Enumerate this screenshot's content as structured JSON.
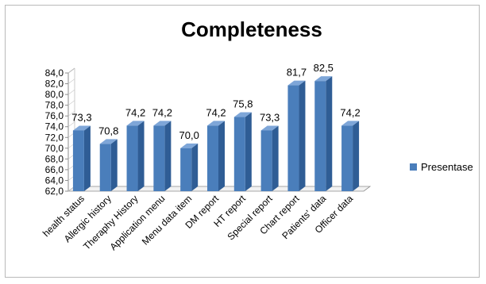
{
  "chart_data": {
    "type": "bar",
    "title": "Completeness",
    "categories": [
      "health status",
      "Allergic history",
      "Theraphy History",
      "Application menu",
      "Menu data item",
      "DM report",
      "HT report",
      "Special report",
      "Chart report",
      "Patients' data",
      "Officer data"
    ],
    "series": [
      {
        "name": "Presentase",
        "values": [
          73.3,
          70.8,
          74.2,
          74.2,
          70.0,
          74.2,
          75.8,
          73.3,
          81.7,
          82.5,
          74.2
        ]
      }
    ],
    "data_labels": [
      "73,3",
      "70,8",
      "74,2",
      "74,2",
      "70,0",
      "74,2",
      "75,8",
      "73,3",
      "81,7",
      "82,5",
      "74,2"
    ],
    "ylim": [
      62,
      84
    ],
    "yticks": [
      62,
      64,
      66,
      68,
      70,
      72,
      74,
      76,
      78,
      80,
      82,
      84
    ],
    "ytick_labels": [
      "62,0",
      "64,0",
      "66,0",
      "68,0",
      "70,0",
      "72,0",
      "74,0",
      "76,0",
      "78,0",
      "80,0",
      "82,0",
      "84,0"
    ],
    "xlabel": "",
    "ylabel": "",
    "grid": false,
    "legend_position": "right",
    "bar_color": "#4a7ebb",
    "bar_side_color": "#2f5d95",
    "bar_top_color": "#7ea6d8"
  }
}
